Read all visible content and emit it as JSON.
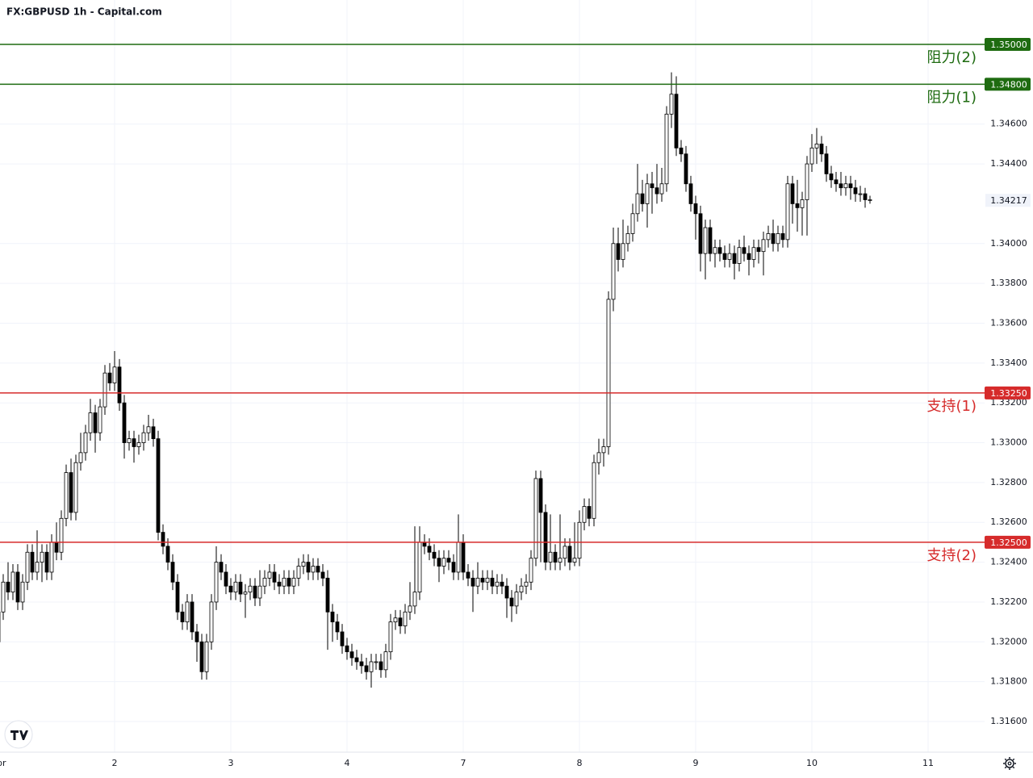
{
  "chart_data": {
    "type": "candlestick",
    "title": "FX:GBPUSD 1h - Capital.com",
    "up_color": "#ffffff",
    "down_color": "#000000",
    "border_color": "#000000",
    "grid": true,
    "ylim": [
      1.31446,
      1.35223
    ],
    "yticks": [
      {
        "value": 1.316,
        "label": "1.31600"
      },
      {
        "value": 1.318,
        "label": "1.31800"
      },
      {
        "value": 1.32,
        "label": "1.32000"
      },
      {
        "value": 1.322,
        "label": "1.32200"
      },
      {
        "value": 1.324,
        "label": "1.32400"
      },
      {
        "value": 1.326,
        "label": "1.32600"
      },
      {
        "value": 1.328,
        "label": "1.32800"
      },
      {
        "value": 1.33,
        "label": "1.33000"
      },
      {
        "value": 1.332,
        "label": "1.33200"
      },
      {
        "value": 1.334,
        "label": "1.33400"
      },
      {
        "value": 1.336,
        "label": "1.33600"
      },
      {
        "value": 1.338,
        "label": "1.33800"
      },
      {
        "value": 1.34,
        "label": "1.34000"
      },
      {
        "value": 1.344,
        "label": "1.34400"
      },
      {
        "value": 1.346,
        "label": "1.34600"
      }
    ],
    "levels": [
      {
        "name": "阻力(2)",
        "value": 1.35,
        "value_label": "1.35000",
        "color": "#1e6b10"
      },
      {
        "name": "阻力(1)",
        "value": 1.348,
        "value_label": "1.34800",
        "color": "#1e6b10"
      },
      {
        "name": "支持(1)",
        "value": 1.3325,
        "value_label": "1.33250",
        "color": "#d62b2b"
      },
      {
        "name": "支持(2)",
        "value": 1.325,
        "value_label": "1.32500",
        "color": "#d62b2b"
      }
    ],
    "last_price": {
      "value": 1.34217,
      "label": "1.34217"
    },
    "categories": [
      "Apr",
      null,
      null,
      null,
      null,
      null,
      null,
      null,
      null,
      null,
      null,
      null,
      null,
      null,
      null,
      null,
      null,
      null,
      null,
      null,
      null,
      null,
      null,
      null,
      "2",
      null,
      null,
      null,
      null,
      null,
      null,
      null,
      null,
      null,
      null,
      null,
      null,
      null,
      null,
      null,
      null,
      null,
      null,
      null,
      null,
      null,
      null,
      null,
      "3",
      null,
      null,
      null,
      null,
      null,
      null,
      null,
      null,
      null,
      null,
      null,
      null,
      null,
      null,
      null,
      null,
      null,
      null,
      null,
      null,
      null,
      null,
      null,
      "4",
      null,
      null,
      null,
      null,
      null,
      null,
      null,
      null,
      null,
      null,
      null,
      null,
      null,
      null,
      null,
      null,
      null,
      null,
      null,
      null,
      null,
      null,
      null,
      "7",
      null,
      null,
      null,
      null,
      null,
      null,
      null,
      null,
      null,
      null,
      null,
      null,
      null,
      null,
      null,
      null,
      null,
      null,
      null,
      null,
      null,
      null,
      null,
      "8",
      null,
      null,
      null,
      null,
      null,
      null,
      null,
      null,
      null,
      null,
      null,
      null,
      null,
      null,
      null,
      null,
      null,
      null,
      null,
      null,
      null,
      null,
      null,
      "9",
      null,
      null,
      null,
      null,
      null,
      null,
      null,
      null,
      null,
      null,
      null,
      null,
      null,
      null,
      null,
      null,
      null,
      null,
      null,
      null,
      null,
      null,
      null,
      "10",
      null,
      null,
      null,
      null,
      null,
      null,
      null,
      null,
      null,
      null,
      null,
      null,
      null,
      null,
      null,
      null,
      null,
      null,
      null,
      null,
      null,
      null,
      null,
      "11"
    ],
    "open": [
      1.32,
      1.3215,
      1.323,
      1.3225,
      1.3235,
      1.322,
      1.323,
      1.3245,
      1.3235,
      1.324,
      1.3245,
      1.3235,
      1.325,
      1.3245,
      1.3262,
      1.3285,
      1.3265,
      1.329,
      1.3295,
      1.3305,
      1.3315,
      1.3305,
      1.3318,
      1.3335,
      1.333,
      1.3338,
      1.332,
      1.33,
      1.3302,
      1.3298,
      1.33,
      1.3305,
      1.3308,
      1.3302,
      1.3255,
      1.3248,
      1.324,
      1.323,
      1.3215,
      1.321,
      1.322,
      1.3205,
      1.32,
      1.3185,
      1.32,
      1.322,
      1.324,
      1.3235,
      1.3228,
      1.3225,
      1.323,
      1.3224,
      1.3225,
      1.3228,
      1.3222,
      1.3228,
      1.3232,
      1.3235,
      1.323,
      1.3228,
      1.3232,
      1.3228,
      1.3232,
      1.3238,
      1.324,
      1.3235,
      1.3238,
      1.3235,
      1.3232,
      1.3215,
      1.321,
      1.3205,
      1.3198,
      1.3195,
      1.3192,
      1.319,
      1.3188,
      1.3185,
      1.319,
      1.319,
      1.3186,
      1.3195,
      1.321,
      1.3212,
      1.3208,
      1.3215,
      1.3218,
      1.3225,
      1.325,
      1.3248,
      1.3245,
      1.3242,
      1.3238,
      1.3242,
      1.324,
      1.3235,
      1.325,
      1.3235,
      1.3232,
      1.3228,
      1.3232,
      1.323,
      1.3232,
      1.3228,
      1.323,
      1.3228,
      1.3222,
      1.3218,
      1.3225,
      1.3228,
      1.323,
      1.3242,
      1.3282,
      1.3265,
      1.324,
      1.3245,
      1.324,
      1.3242,
      1.3248,
      1.324,
      1.3242,
      1.326,
      1.3268,
      1.3262,
      1.329,
      1.3295,
      1.3298,
      1.3372,
      1.34,
      1.3392,
      1.34,
      1.3405,
      1.3415,
      1.3425,
      1.342,
      1.343,
      1.3428,
      1.3425,
      1.343,
      1.3465,
      1.3475,
      1.3448,
      1.3445,
      1.343,
      1.342,
      1.3415,
      1.3395,
      1.3408,
      1.3395,
      1.3398,
      1.3395,
      1.3392,
      1.3395,
      1.339,
      1.3398,
      1.3395,
      1.3392,
      1.3398,
      1.3396,
      1.3402,
      1.3405,
      1.34,
      1.3405,
      1.3402,
      1.343,
      1.342,
      1.3418,
      1.3422,
      1.344,
      1.3448,
      1.345,
      1.3445,
      1.3435,
      1.3432,
      1.343,
      1.3428,
      1.343,
      1.3428,
      1.3425,
      1.3425,
      1.3422,
      null,
      null,
      null,
      null,
      null,
      null,
      null,
      null,
      null,
      null,
      null,
      null
    ],
    "high": [
      1.3219,
      1.3234,
      1.324,
      1.3239,
      1.3239,
      1.3234,
      1.3249,
      1.3249,
      1.3256,
      1.3249,
      1.3249,
      1.3254,
      1.326,
      1.3266,
      1.3289,
      1.3292,
      1.3294,
      1.3305,
      1.3309,
      1.3322,
      1.3319,
      1.3322,
      1.3339,
      1.334,
      1.3346,
      1.3342,
      1.3324,
      1.3306,
      1.3306,
      1.3304,
      1.3309,
      1.3314,
      1.3312,
      1.3306,
      1.3259,
      1.3252,
      1.3244,
      1.3234,
      1.3219,
      1.3224,
      1.3224,
      1.3209,
      1.3204,
      1.3204,
      1.3224,
      1.3248,
      1.3244,
      1.3239,
      1.3232,
      1.3234,
      1.3234,
      1.3229,
      1.3232,
      1.3232,
      1.3236,
      1.3236,
      1.3239,
      1.3239,
      1.3234,
      1.3236,
      1.3236,
      1.3236,
      1.3242,
      1.3244,
      1.3244,
      1.3242,
      1.3242,
      1.3239,
      1.3236,
      1.3219,
      1.3214,
      1.3209,
      1.3202,
      1.3199,
      1.3196,
      1.3194,
      1.3192,
      1.3194,
      1.3194,
      1.3194,
      1.3199,
      1.3214,
      1.3216,
      1.3216,
      1.3219,
      1.323,
      1.3258,
      1.3258,
      1.3254,
      1.3252,
      1.3249,
      1.3246,
      1.3246,
      1.3246,
      1.3244,
      1.3264,
      1.3254,
      1.3239,
      1.3236,
      1.324,
      1.3236,
      1.3236,
      1.3236,
      1.3234,
      1.3234,
      1.3232,
      1.3226,
      1.3229,
      1.3232,
      1.3234,
      1.3246,
      1.3286,
      1.3286,
      1.3269,
      1.3264,
      1.3249,
      1.3264,
      1.3252,
      1.3252,
      1.326,
      1.3266,
      1.3272,
      1.3272,
      1.3294,
      1.3302,
      1.3302,
      1.3376,
      1.3408,
      1.3408,
      1.3412,
      1.3409,
      1.342,
      1.344,
      1.3432,
      1.3435,
      1.3436,
      1.344,
      1.3438,
      1.3469,
      1.3486,
      1.3484,
      1.3452,
      1.3449,
      1.3434,
      1.3424,
      1.3419,
      1.3412,
      1.3412,
      1.3402,
      1.3402,
      1.3399,
      1.34,
      1.3399,
      1.3402,
      1.3404,
      1.3399,
      1.3402,
      1.3402,
      1.3406,
      1.3409,
      1.3412,
      1.3409,
      1.3409,
      1.3434,
      1.3434,
      1.3432,
      1.3426,
      1.3444,
      1.3455,
      1.3458,
      1.3454,
      1.3449,
      1.3439,
      1.3436,
      1.3436,
      1.3434,
      1.3434,
      1.3432,
      1.3429,
      1.3428,
      1.3424,
      null,
      null,
      null,
      null,
      null,
      null,
      null,
      null,
      null,
      null,
      null,
      null
    ],
    "low": [
      1.3186,
      1.3211,
      1.3221,
      1.3221,
      1.3216,
      1.3216,
      1.3226,
      1.3231,
      1.3231,
      1.323,
      1.3231,
      1.3231,
      1.3241,
      1.3241,
      1.3258,
      1.3261,
      1.3261,
      1.3286,
      1.3291,
      1.3301,
      1.3295,
      1.3301,
      1.3314,
      1.3326,
      1.3326,
      1.3316,
      1.3292,
      1.3296,
      1.329,
      1.3294,
      1.3296,
      1.3301,
      1.3298,
      1.3251,
      1.3244,
      1.3236,
      1.3226,
      1.3211,
      1.3206,
      1.3206,
      1.3201,
      1.319,
      1.3181,
      1.3181,
      1.3196,
      1.3216,
      1.3231,
      1.3224,
      1.3221,
      1.3221,
      1.322,
      1.3212,
      1.3221,
      1.3218,
      1.3218,
      1.3224,
      1.3228,
      1.3226,
      1.3224,
      1.3224,
      1.3224,
      1.3224,
      1.3228,
      1.3234,
      1.3231,
      1.3231,
      1.3231,
      1.3228,
      1.3196,
      1.32,
      1.3201,
      1.3194,
      1.3191,
      1.3188,
      1.3186,
      1.3184,
      1.3181,
      1.3177,
      1.3186,
      1.3182,
      1.3182,
      1.3191,
      1.3206,
      1.3204,
      1.3204,
      1.3211,
      1.3214,
      1.3221,
      1.3244,
      1.3241,
      1.3238,
      1.323,
      1.3234,
      1.3236,
      1.3231,
      1.3231,
      1.3231,
      1.3228,
      1.3215,
      1.3224,
      1.3226,
      1.3226,
      1.3224,
      1.3224,
      1.3224,
      1.3212,
      1.321,
      1.3214,
      1.3221,
      1.3224,
      1.3226,
      1.3238,
      1.324,
      1.3236,
      1.3236,
      1.3236,
      1.3236,
      1.3238,
      1.3236,
      1.3238,
      1.3238,
      1.3256,
      1.3258,
      1.3258,
      1.3284,
      1.3288,
      1.3294,
      1.3366,
      1.3386,
      1.3388,
      1.3396,
      1.3401,
      1.3411,
      1.3416,
      1.3408,
      1.3415,
      1.342,
      1.3421,
      1.3426,
      1.3458,
      1.3444,
      1.3441,
      1.3426,
      1.3416,
      1.3402,
      1.3386,
      1.3382,
      1.3391,
      1.3388,
      1.3391,
      1.3388,
      1.3388,
      1.3382,
      1.3386,
      1.3391,
      1.3384,
      1.3388,
      1.339,
      1.3384,
      1.3398,
      1.3396,
      1.3396,
      1.3398,
      1.3398,
      1.341,
      1.3406,
      1.3404,
      1.3404,
      1.3436,
      1.344,
      1.3441,
      1.3431,
      1.3428,
      1.3426,
      1.3424,
      1.3424,
      1.3422,
      1.3421,
      1.3421,
      1.3418,
      1.342,
      null,
      null,
      null,
      null,
      null,
      null,
      null,
      null,
      null,
      null,
      null,
      null
    ],
    "close": [
      1.3215,
      1.323,
      1.3225,
      1.3235,
      1.322,
      1.323,
      1.3245,
      1.3235,
      1.324,
      1.3245,
      1.3235,
      1.325,
      1.3245,
      1.3262,
      1.3285,
      1.3265,
      1.329,
      1.3295,
      1.3305,
      1.3315,
      1.3305,
      1.3318,
      1.3335,
      1.333,
      1.3338,
      1.332,
      1.33,
      1.3302,
      1.3298,
      1.33,
      1.3305,
      1.3308,
      1.3302,
      1.3255,
      1.3248,
      1.324,
      1.323,
      1.3215,
      1.321,
      1.322,
      1.3205,
      1.32,
      1.3185,
      1.32,
      1.322,
      1.324,
      1.3235,
      1.3228,
      1.3225,
      1.323,
      1.3224,
      1.3225,
      1.3228,
      1.3222,
      1.3228,
      1.3232,
      1.3235,
      1.323,
      1.3228,
      1.3232,
      1.3228,
      1.3232,
      1.3238,
      1.324,
      1.3235,
      1.3238,
      1.3235,
      1.3232,
      1.3215,
      1.321,
      1.3205,
      1.3198,
      1.3195,
      1.3192,
      1.319,
      1.3188,
      1.3185,
      1.319,
      1.319,
      1.3186,
      1.3195,
      1.321,
      1.3212,
      1.3208,
      1.3215,
      1.3218,
      1.3225,
      1.325,
      1.3248,
      1.3245,
      1.3242,
      1.3238,
      1.3242,
      1.324,
      1.3235,
      1.325,
      1.3235,
      1.3232,
      1.3228,
      1.3232,
      1.323,
      1.3232,
      1.3228,
      1.323,
      1.3228,
      1.3222,
      1.3218,
      1.3225,
      1.3228,
      1.323,
      1.3242,
      1.3282,
      1.3265,
      1.324,
      1.3245,
      1.324,
      1.3242,
      1.3248,
      1.324,
      1.3242,
      1.326,
      1.3268,
      1.3262,
      1.329,
      1.3295,
      1.3298,
      1.3372,
      1.34,
      1.3392,
      1.34,
      1.3405,
      1.3415,
      1.3425,
      1.342,
      1.343,
      1.3428,
      1.3425,
      1.343,
      1.3465,
      1.3475,
      1.3448,
      1.3445,
      1.343,
      1.342,
      1.3415,
      1.3395,
      1.3408,
      1.3395,
      1.3398,
      1.3395,
      1.3392,
      1.3395,
      1.339,
      1.3398,
      1.3395,
      1.3392,
      1.3398,
      1.3396,
      1.3402,
      1.3405,
      1.34,
      1.3405,
      1.3402,
      1.343,
      1.342,
      1.3418,
      1.3422,
      1.344,
      1.3448,
      1.345,
      1.3445,
      1.3435,
      1.3432,
      1.343,
      1.3428,
      1.343,
      1.3428,
      1.3425,
      1.3425,
      1.3422,
      1.3422,
      null,
      null,
      null,
      null,
      null,
      null,
      null,
      null,
      null,
      null,
      null,
      null
    ]
  }
}
